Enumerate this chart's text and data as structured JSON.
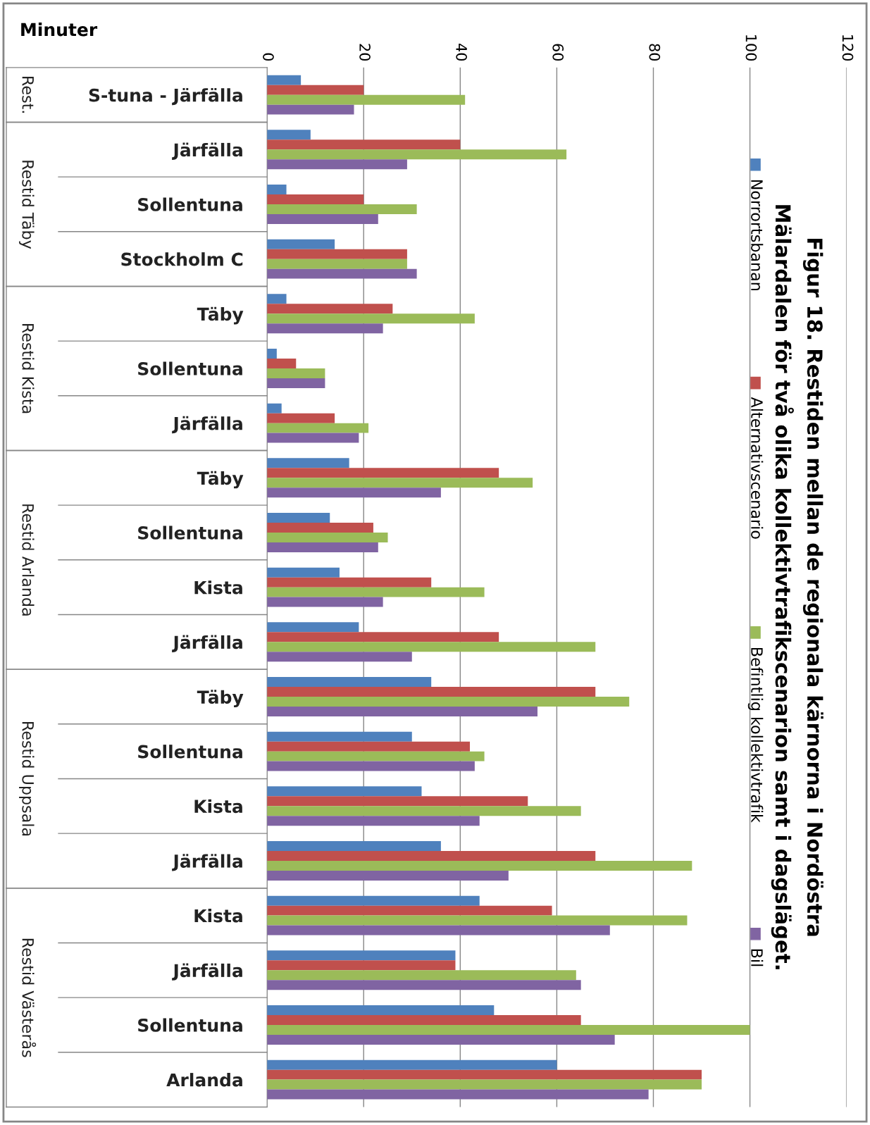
{
  "chart_data": {
    "type": "bar",
    "orientation": "horizontal",
    "title": "Figur 18. Restiden mellan de regionala kärnorna i Nordöstra\nMälardalen för två olika kollektivtrafikscenarion samt i dagsläget.",
    "ylabel": "Minuter",
    "categories": [
      "S-tuna - Järfälla",
      "Järfälla",
      "Sollentuna",
      "Stockholm C",
      "Täby",
      "Sollentuna",
      "Järfälla",
      "Täby",
      "Sollentuna",
      "Kista",
      "Järfälla",
      "Täby",
      "Sollentuna",
      "Kista",
      "Järfälla",
      "Kista",
      "Järfälla",
      "Sollentuna",
      "Arlanda"
    ],
    "annotations": [
      "Rest.",
      "Restid Täby",
      "Restid Kista",
      "Restid Arlanda",
      "Restid Uppsala",
      "Restid Västerås"
    ],
    "series": [
      {
        "name": "Norrortsbanan",
        "color": "#4f81bd",
        "values": [
          7,
          9,
          4,
          14,
          4,
          2,
          3,
          17,
          13,
          15,
          19,
          34,
          30,
          32,
          36,
          44,
          39,
          47,
          60
        ]
      },
      {
        "name": "Alternativscenario",
        "color": "#c0504d",
        "values": [
          20,
          40,
          20,
          29,
          26,
          6,
          14,
          48,
          22,
          34,
          48,
          68,
          42,
          54,
          68,
          59,
          39,
          65,
          90
        ]
      },
      {
        "name": "Befintlig kollektivtrafik",
        "color": "#9bbb59",
        "values": [
          41,
          62,
          31,
          29,
          43,
          12,
          21,
          55,
          25,
          45,
          68,
          75,
          45,
          65,
          88,
          87,
          64,
          100,
          90
        ]
      },
      {
        "name": "Bil",
        "color": "#8064a2",
        "values": [
          18,
          29,
          23,
          31,
          24,
          12,
          19,
          36,
          23,
          24,
          30,
          56,
          43,
          44,
          50,
          71,
          65,
          72,
          79
        ]
      }
    ],
    "xlim": [
      0,
      120
    ],
    "xticks": [
      0,
      20,
      40,
      60,
      80,
      100,
      120
    ],
    "grid": "x",
    "legend": "right"
  }
}
